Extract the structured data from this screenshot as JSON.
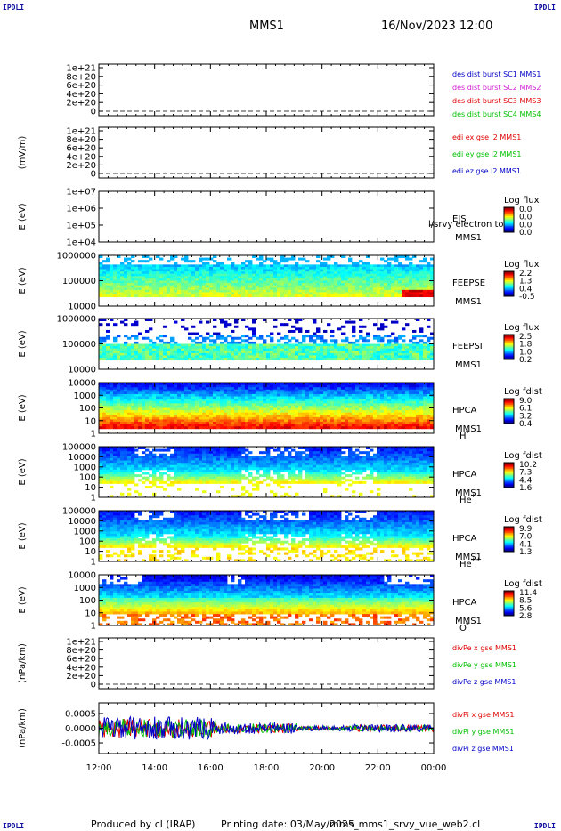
{
  "header": {
    "corner_label": "IPDLI",
    "mission": "MMS1",
    "datetime": "16/Nov/2023 12:00"
  },
  "footer": {
    "produced": "Produced by cl (IRAP)",
    "printing": "Printing date: 03/May/2025",
    "script": "mms_mms1_srvy_vue_web2.cl"
  },
  "chart_data": {
    "type": "line",
    "x_ticks": [
      "12:00",
      "14:00",
      "16:00",
      "18:00",
      "20:00",
      "22:00",
      "00:00"
    ],
    "x_range_hours": [
      12,
      24
    ],
    "panels": [
      {
        "id": "des-dist",
        "kind": "line",
        "ylabel": "",
        "y_ticks": [
          "1e+21",
          "8e+20",
          "6e+20",
          "4e+20",
          "2e+20",
          "0"
        ],
        "y_range": [
          0,
          1e+21
        ],
        "legend": [
          {
            "text": "des dist burst SC1 MMS1",
            "color": "#0000c8"
          },
          {
            "text": "des dist burst SC2 MMS2",
            "color": "#d020d0"
          },
          {
            "text": "des dist burst SC3 MMS3",
            "color": "#e00000"
          },
          {
            "text": "des dist burst SC4 MMS4",
            "color": "#00c000"
          }
        ]
      },
      {
        "id": "edi",
        "kind": "line",
        "ylabel": "(mV/m)",
        "y_ticks": [
          "1e+21",
          "8e+20",
          "6e+20",
          "4e+20",
          "2e+20",
          "0"
        ],
        "y_range": [
          0,
          1e+21
        ],
        "legend": [
          {
            "text": "edi ex gse l2 MMS1",
            "color": "#e00000"
          },
          {
            "text": "edi ey gse l2 MMS1",
            "color": "#00c000"
          },
          {
            "text": "edi ez gse l2 MMS1",
            "color": "#0000c8"
          }
        ]
      },
      {
        "id": "eis",
        "kind": "spectrogram",
        "ylabel": "E (eV)",
        "y_ticks": [
          "1e+07",
          "1e+06",
          "1e+05",
          "1e+04"
        ],
        "log_y_range": [
          4,
          7
        ],
        "labels": [
          "EIS",
          "MMS1"
        ],
        "overlay": "l/srvy electron to",
        "cbar_title": "Log flux",
        "cbar_ticks": [
          "0.0",
          "0.0",
          "0.0",
          "0.0"
        ]
      },
      {
        "id": "feepse",
        "kind": "spectrogram",
        "ylabel": "E (eV)",
        "y_ticks": [
          "1000000",
          "100000",
          "10000"
        ],
        "log_y_range": [
          4,
          6
        ],
        "labels": [
          "FEEPSE",
          "MMS1"
        ],
        "cbar_title": "Log flux",
        "cbar_ticks": [
          "2.2",
          "1.3",
          "0.4",
          "-0.5"
        ]
      },
      {
        "id": "feepsi",
        "kind": "spectrogram",
        "ylabel": "E (eV)",
        "y_ticks": [
          "1000000",
          "100000",
          "10000"
        ],
        "log_y_range": [
          4,
          6
        ],
        "labels": [
          "FEEPSI",
          "MMS1"
        ],
        "cbar_title": "Log flux",
        "cbar_ticks": [
          "2.5",
          "1.8",
          "1.0",
          "0.2"
        ]
      },
      {
        "id": "hpca-h",
        "kind": "spectrogram",
        "ylabel": "E (eV)",
        "y_ticks": [
          "10000",
          "1000",
          "100",
          "10",
          "1"
        ],
        "log_y_range": [
          0,
          4.3
        ],
        "labels": [
          "HPCA",
          "MMS1",
          "H",
          "+"
        ],
        "cbar_title": "Log fdist",
        "cbar_ticks": [
          "9.0",
          "6.1",
          "3.2",
          "0.4"
        ]
      },
      {
        "id": "hpca-he",
        "kind": "spectrogram",
        "ylabel": "E (eV)",
        "y_ticks": [
          "100000",
          "10000",
          "1000",
          "100",
          "10",
          "1"
        ],
        "log_y_range": [
          0,
          5
        ],
        "labels": [
          "HPCA",
          "MMS1",
          "He",
          "+"
        ],
        "cbar_title": "Log fdist",
        "cbar_ticks": [
          "10.2",
          "7.3",
          "4.4",
          "1.6"
        ]
      },
      {
        "id": "hpca-hepp",
        "kind": "spectrogram",
        "ylabel": "E (eV)",
        "y_ticks": [
          "100000",
          "10000",
          "1000",
          "100",
          "10",
          "1"
        ],
        "log_y_range": [
          0,
          5
        ],
        "labels": [
          "HPCA",
          "MMS1",
          "He",
          "++"
        ],
        "cbar_title": "Log fdist",
        "cbar_ticks": [
          "9.9",
          "7.0",
          "4.1",
          "1.3"
        ]
      },
      {
        "id": "hpca-o",
        "kind": "spectrogram",
        "ylabel": "E (eV)",
        "y_ticks": [
          "10000",
          "1000",
          "100",
          "10",
          "1"
        ],
        "log_y_range": [
          0,
          4.3
        ],
        "labels": [
          "HPCA",
          "MMS1",
          "O",
          "+"
        ],
        "cbar_title": "Log fdist",
        "cbar_ticks": [
          "11.4",
          "8.5",
          "5.6",
          "2.8"
        ]
      },
      {
        "id": "divpe",
        "kind": "line",
        "ylabel": "(nPa/km)",
        "y_ticks": [
          "1e+21",
          "8e+20",
          "6e+20",
          "4e+20",
          "2e+20",
          "0"
        ],
        "y_range": [
          0,
          1e+21
        ],
        "legend": [
          {
            "text": "divPe x gse MMS1",
            "color": "#e00000"
          },
          {
            "text": "divPe y gse MMS1",
            "color": "#00c000"
          },
          {
            "text": "divPe z gse MMS1",
            "color": "#0000c8"
          }
        ]
      },
      {
        "id": "divpi",
        "kind": "timeseries",
        "ylabel": "(nPa/km)",
        "y_ticks": [
          "0.0005",
          "0.0000",
          "-0.0005"
        ],
        "y_range": [
          -0.00085,
          0.00085
        ],
        "legend": [
          {
            "text": "divPi x gse MMS1",
            "color": "#e00000"
          },
          {
            "text": "divPi y gse MMS1",
            "color": "#00c000"
          },
          {
            "text": "divPi z gse MMS1",
            "color": "#0000c8"
          }
        ]
      }
    ]
  }
}
